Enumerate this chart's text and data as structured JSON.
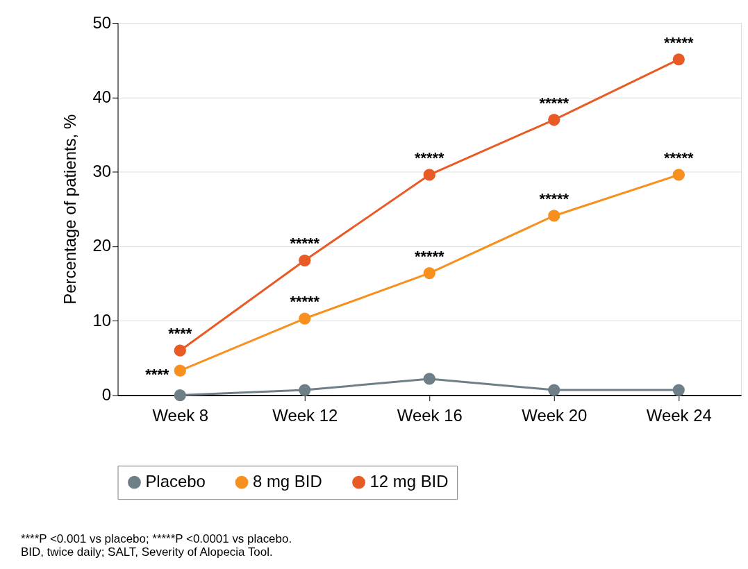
{
  "chart_data": {
    "type": "line",
    "ylabel": "Percentage of patients, %",
    "categories": [
      "Week 8",
      "Week 12",
      "Week 16",
      "Week 20",
      "Week 24"
    ],
    "series": [
      {
        "name": "Placebo",
        "color": "#6f7f88",
        "values": [
          0,
          0.7,
          2.2,
          0.7,
          0.7
        ]
      },
      {
        "name": "8 mg BID",
        "color": "#f7901e",
        "values": [
          3.3,
          10.3,
          16.4,
          24.1,
          29.6
        ]
      },
      {
        "name": "12 mg BID",
        "color": "#e95b25",
        "values": [
          6.0,
          18.1,
          29.6,
          37.0,
          45.1
        ]
      }
    ],
    "ylim": [
      0,
      50
    ],
    "yticks": [
      0,
      10,
      20,
      30,
      40,
      50
    ],
    "grid": "y",
    "legend": "bottom",
    "marker": "circle",
    "line_style": "solid",
    "annotations": [
      {
        "text": "****",
        "x": "Week 8",
        "y": 6.0
      },
      {
        "text": "*****",
        "x": "Week 12",
        "y": 18.1
      },
      {
        "text": "*****",
        "x": "Week 16",
        "y": 29.6
      },
      {
        "text": "*****",
        "x": "Week 20",
        "y": 37.0
      },
      {
        "text": "*****",
        "x": "Week 24",
        "y": 45.1
      },
      {
        "text": "****",
        "x": "Week 8",
        "y": 3.3
      },
      {
        "text": "*****",
        "x": "Week 12",
        "y": 10.3
      },
      {
        "text": "*****",
        "x": "Week 16",
        "y": 16.4
      },
      {
        "text": "*****",
        "x": "Week 20",
        "y": 24.1
      },
      {
        "text": "*****",
        "x": "Week 24",
        "y": 29.6
      },
      "****P <0.001 vs placebo; *****P <0.0001 vs placebo.",
      "BID, twice daily; SALT, Severity of Alopecia Tool."
    ]
  }
}
